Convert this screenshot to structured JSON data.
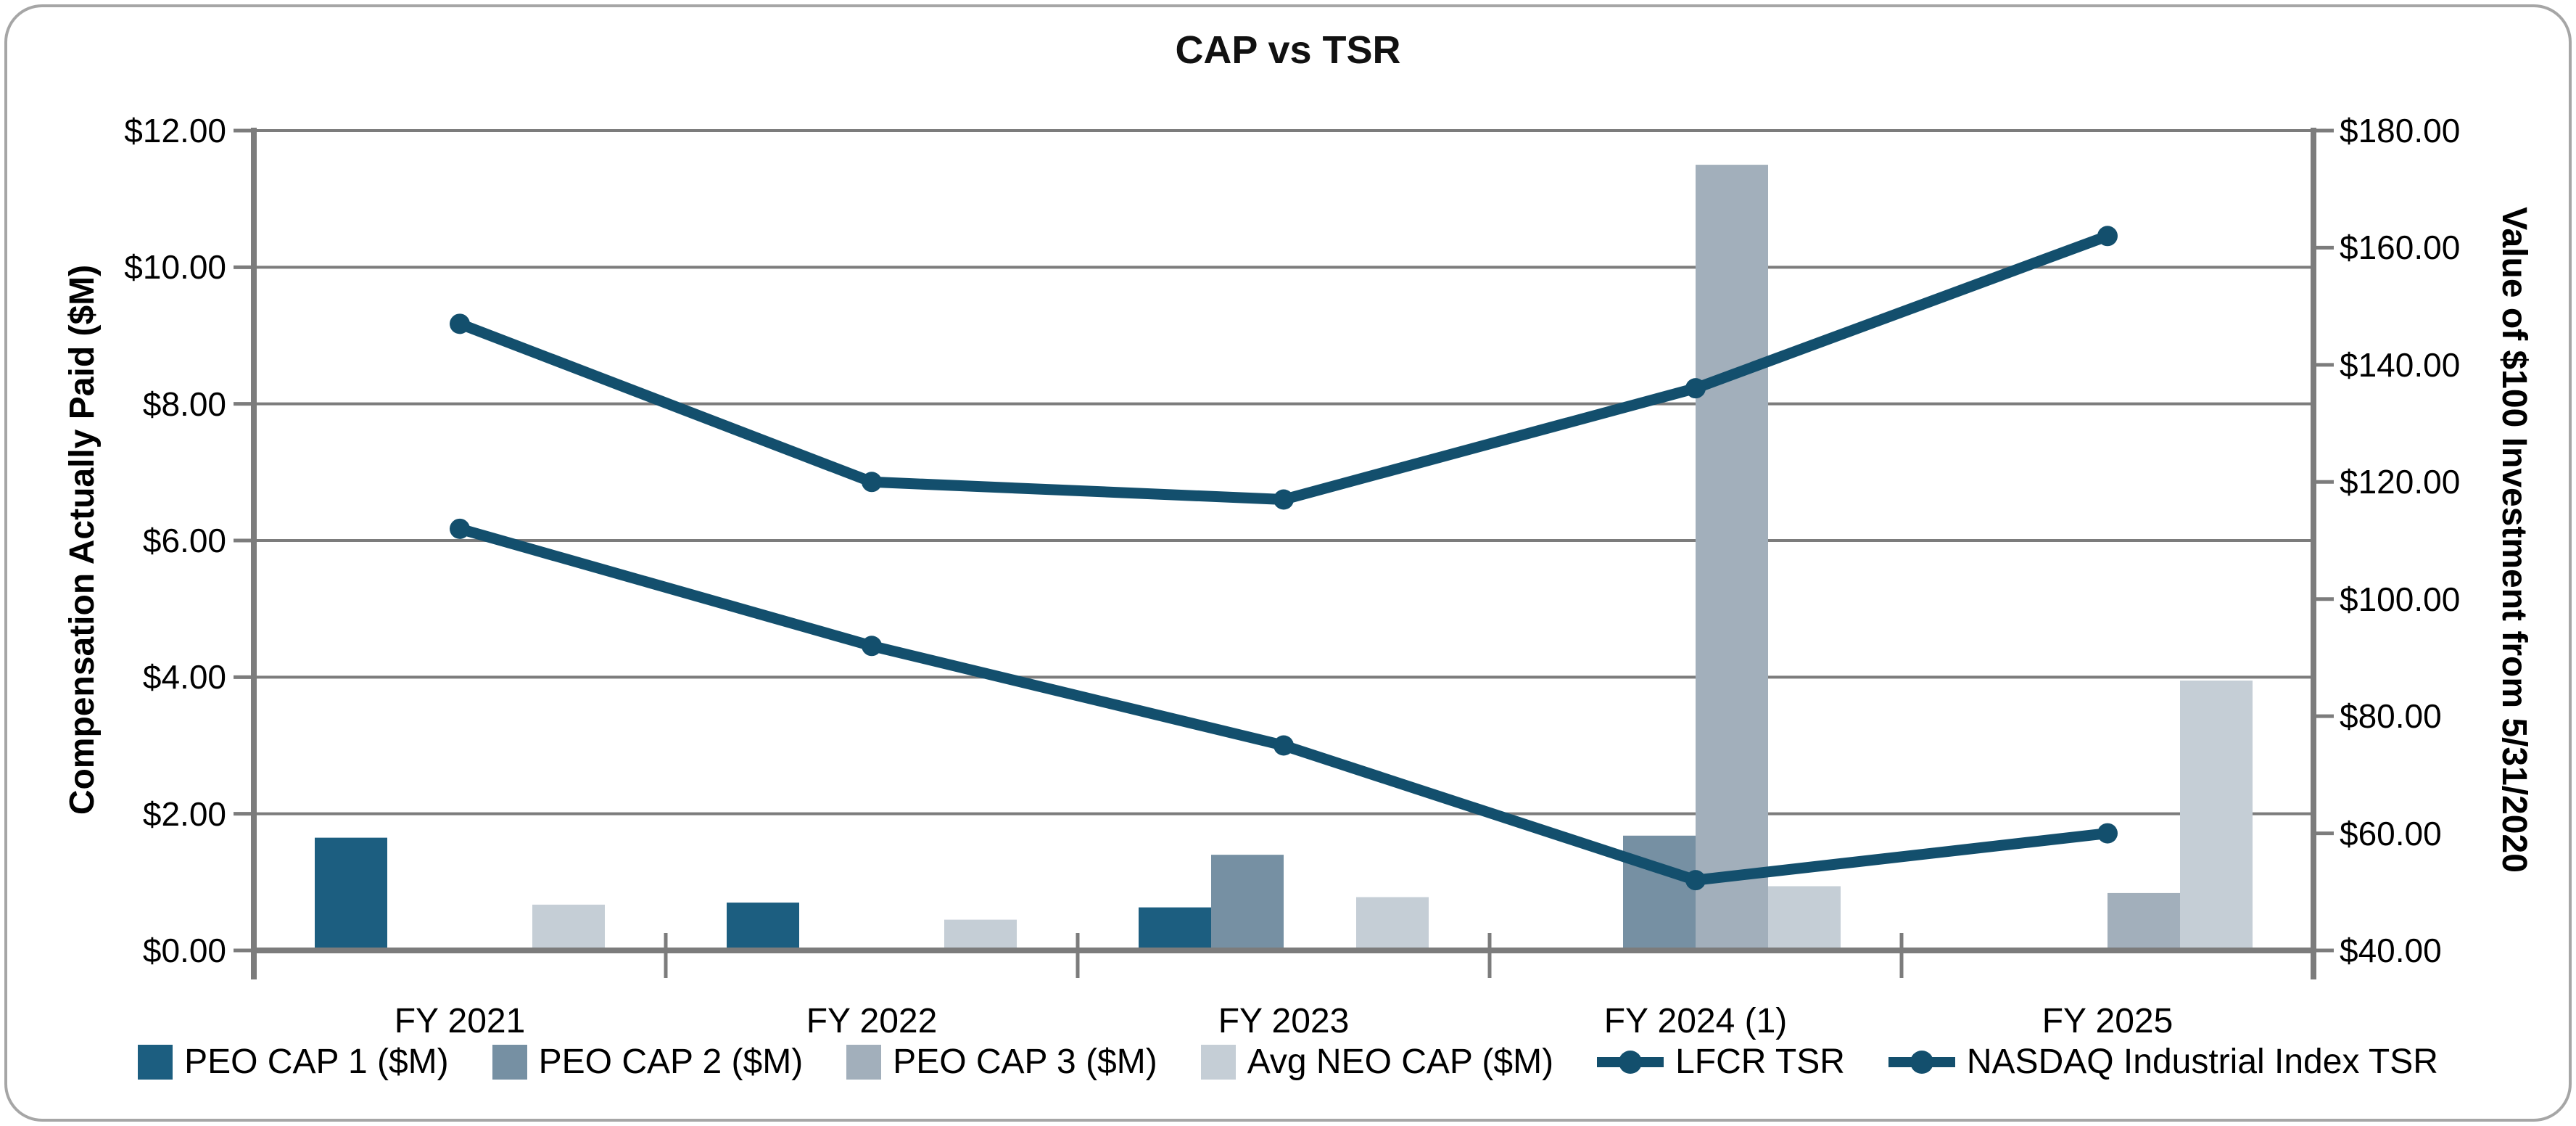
{
  "title": "CAP vs TSR",
  "chart_data": {
    "type": "bar+line combo",
    "title": "CAP vs TSR",
    "categories": [
      "FY 2021",
      "FY 2022",
      "FY 2023",
      "FY 2024 (1)",
      "FY 2025"
    ],
    "bar_series": [
      {
        "name": "PEO CAP 1 ($M)",
        "color": "#1C5E80",
        "values": [
          1.65,
          0.7,
          0.63,
          null,
          null
        ]
      },
      {
        "name": "PEO CAP 2 ($M)",
        "color": "#7690A3",
        "values": [
          null,
          null,
          1.4,
          1.68,
          null
        ]
      },
      {
        "name": "PEO CAP 3 ($M)",
        "color": "#A2AFBB",
        "values": [
          null,
          null,
          null,
          11.5,
          0.84
        ]
      },
      {
        "name": "Avg NEO CAP ($M)",
        "color": "#C5CED6",
        "values": [
          0.67,
          0.45,
          0.78,
          0.94,
          3.95
        ]
      }
    ],
    "line_series": [
      {
        "name": "LFCR TSR",
        "color": "#134F6D",
        "axis": "right",
        "values": [
          112,
          92,
          75,
          52,
          60
        ]
      },
      {
        "name": "NASDAQ Industrial Index TSR",
        "color": "#134F6D",
        "axis": "right",
        "values": [
          147,
          120,
          117,
          136,
          162
        ]
      }
    ],
    "ylabel_left": "Compensation Actually Paid ($M)",
    "ylabel_right": "Value of $100 Investment from 5/31/2020",
    "y_left": {
      "min": 0,
      "max": 12,
      "step": 2
    },
    "y_right": {
      "min": 40,
      "max": 180,
      "step": 20
    },
    "left_tick_labels": [
      "$0.00",
      "$2.00",
      "$4.00",
      "$6.00",
      "$8.00",
      "$10.00",
      "$12.00"
    ],
    "right_tick_labels": [
      "$40.00",
      "$60.00",
      "$80.00",
      "$100.00",
      "$120.00",
      "$140.00",
      "$160.00",
      "$180.00"
    ],
    "grid": true,
    "legend_position": "bottom",
    "colors": {
      "grid": "#7C7C7C",
      "axis": "#7C7C7C",
      "text": "#000000"
    }
  }
}
